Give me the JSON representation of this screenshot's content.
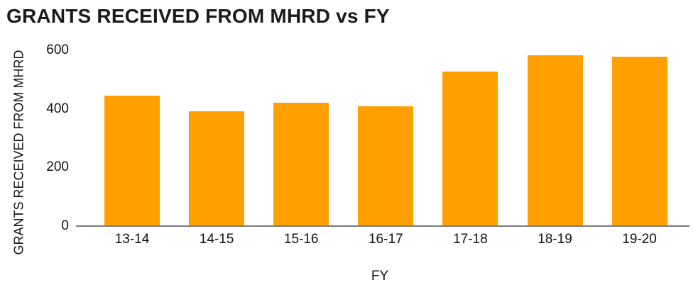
{
  "title": "GRANTS RECEIVED FROM MHRD vs FY",
  "colors": {
    "bar": "#FFA000",
    "axis_line": "#7a7a7a",
    "text": "#111111",
    "background": "#ffffff"
  },
  "chart_data": {
    "type": "bar",
    "title": "GRANTS RECEIVED FROM MHRD vs FY",
    "categories": [
      "13-14",
      "14-15",
      "15-16",
      "16-17",
      "17-18",
      "18-19",
      "19-20"
    ],
    "values": [
      445,
      391,
      420,
      408,
      527,
      583,
      578
    ],
    "xlabel": "FY",
    "ylabel": "GRANTS RECEIVED FROM MHRD",
    "ylim": [
      0,
      600
    ],
    "yticks": [
      0,
      200,
      400,
      600
    ],
    "grid": false,
    "legend": false,
    "bar_color": "#FFA000"
  }
}
